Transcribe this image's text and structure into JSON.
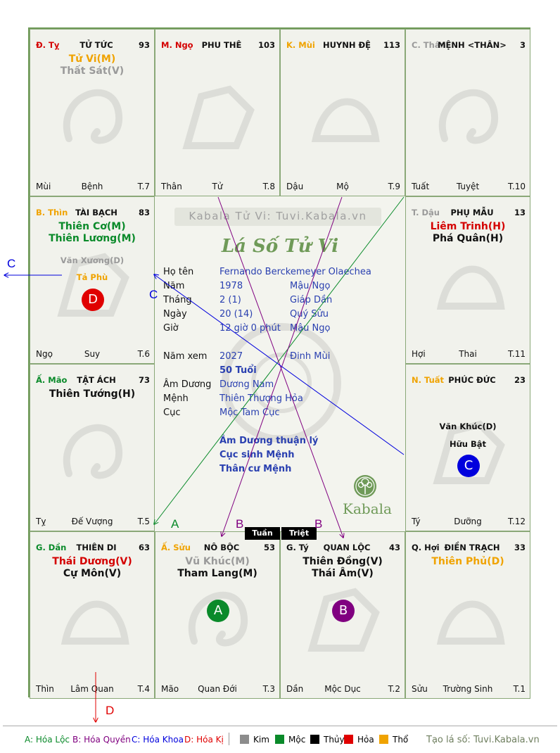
{
  "cells": {
    "ty": {
      "pos_name": "Đ. Tỵ",
      "pos_color": "#d40000",
      "title": "TỬ TỨC",
      "count": "93",
      "stars": [
        {
          "text": "Tử Vi(M)",
          "color": "#f0a300"
        },
        {
          "text": "Thất Sát(V)",
          "color": "#9a9a9a"
        }
      ],
      "bl": "Mùi",
      "bc": "Bệnh",
      "br": "T.7"
    },
    "ngo": {
      "pos_name": "M. Ngọ",
      "pos_color": "#d40000",
      "title": "PHU THÊ",
      "count": "103",
      "stars": [],
      "bl": "Thân",
      "bc": "Tử",
      "br": "T.8"
    },
    "mui": {
      "pos_name": "K. Mùi",
      "pos_color": "#f0a300",
      "title": "HUYNH ĐỆ",
      "count": "113",
      "stars": [],
      "bl": "Dậu",
      "bc": "Mộ",
      "br": "T.9"
    },
    "than": {
      "pos_name": "C. Thân",
      "pos_color": "#9a9a9a",
      "title": "MỆNH <THÂN>",
      "count": "3",
      "stars": [],
      "bl": "Tuất",
      "bc": "Tuyệt",
      "br": "T.10"
    },
    "thin": {
      "pos_name": "B. Thìn",
      "pos_color": "#f0a300",
      "title": "TÀI BẠCH",
      "count": "83",
      "stars": [
        {
          "text": "Thiên Cơ(M)",
          "color": "#0a8a2a"
        },
        {
          "text": "Thiên Lương(M)",
          "color": "#0a8a2a"
        }
      ],
      "minor": [
        {
          "text": "Văn Xương(D)",
          "color": "#9a9a9a"
        },
        {
          "text": "Tả Phù",
          "color": "#f0a300"
        }
      ],
      "circle": {
        "label": "D",
        "color": "#e00000"
      },
      "bl": "Ngọ",
      "bc": "Suy",
      "br": "T.6"
    },
    "dau": {
      "pos_name": "T. Dậu",
      "pos_color": "#9a9a9a",
      "title": "PHỤ MẪU",
      "count": "13",
      "stars": [
        {
          "text": "Liêm Trinh(H)",
          "color": "#d40000"
        },
        {
          "text": "Phá Quân(H)",
          "color": "#111111"
        }
      ],
      "bl": "Hợi",
      "bc": "Thai",
      "br": "T.11"
    },
    "mao": {
      "pos_name": "Ấ. Mão",
      "pos_color": "#0a8a2a",
      "title": "TẬT ÁCH",
      "count": "73",
      "stars": [
        {
          "text": "Thiên Tướng(H)",
          "color": "#111111"
        }
      ],
      "bl": "Tỵ",
      "bc": "Đế Vượng",
      "br": "T.5"
    },
    "tuat": {
      "pos_name": "N. Tuất",
      "pos_color": "#f0a300",
      "title": "PHÚC ĐỨC",
      "count": "23",
      "stars": [],
      "minor": [
        {
          "text": "Văn Khúc(D)",
          "color": "#111111"
        },
        {
          "text": "Hữu Bật",
          "color": "#111111"
        }
      ],
      "circle": {
        "label": "C",
        "color": "#0000dd"
      },
      "bl": "Tý",
      "bc": "Dưỡng",
      "br": "T.12"
    },
    "dan": {
      "pos_name": "G. Dần",
      "pos_color": "#0a8a2a",
      "title": "THIÊN DI",
      "count": "63",
      "stars": [
        {
          "text": "Thái Dương(V)",
          "color": "#d40000"
        },
        {
          "text": "Cự Môn(V)",
          "color": "#111111"
        }
      ],
      "bl": "Thìn",
      "bc": "Lâm Quan",
      "br": "T.4"
    },
    "suu": {
      "pos_name": "Ấ. Sửu",
      "pos_color": "#f0a300",
      "title": "NÔ BỘC",
      "count": "53",
      "stars": [
        {
          "text": "Vũ Khúc(M)",
          "color": "#9a9a9a"
        },
        {
          "text": "Tham Lang(M)",
          "color": "#111111"
        }
      ],
      "circle": {
        "label": "A",
        "color": "#0a8a2a"
      },
      "bl": "Mão",
      "bc": "Quan Đới",
      "br": "T.3"
    },
    "tycell": {
      "pos_name": "G. Tý",
      "pos_color": "#111111",
      "title": "QUAN LỘC",
      "count": "43",
      "stars": [
        {
          "text": "Thiên Đồng(V)",
          "color": "#111111"
        },
        {
          "text": "Thái Âm(V)",
          "color": "#111111"
        }
      ],
      "circle": {
        "label": "B",
        "color": "#800080"
      },
      "bl": "Dần",
      "bc": "Mộc Dục",
      "br": "T.2"
    },
    "hoi": {
      "pos_name": "Q. Hợi",
      "pos_color": "#111111",
      "title": "ĐIỀN TRẠCH",
      "count": "33",
      "stars": [
        {
          "text": "Thiên Phủ(D)",
          "color": "#f0a300"
        }
      ],
      "bl": "Sửu",
      "bc": "Trường Sinh",
      "br": "T.1"
    }
  },
  "center": {
    "banner": "Kabala Tử Vi: Tuvi.Kabala.vn",
    "script_title": "Lá Số Tử Vi",
    "rows": [
      {
        "k": "Họ tên",
        "v1": "Fernando Berckemeyer Olaechea",
        "v2": ""
      },
      {
        "k": "Năm",
        "v1": "1978",
        "v2": "Mậu Ngọ"
      },
      {
        "k": "Tháng",
        "v1": "2  (1)",
        "v2": "Giáp Dần"
      },
      {
        "k": "Ngày",
        "v1": "20  (14)",
        "v2": "Quý Sửu"
      },
      {
        "k": "Giờ",
        "v1": "12 giờ 0 phút",
        "v2": "Mậu Ngọ"
      }
    ],
    "view_year": {
      "k": "Năm xem",
      "v1": "2027",
      "v2": "Đinh Mùi"
    },
    "age": "50 Tuổi",
    "rows2": [
      {
        "k": "Âm Dương",
        "v": "Dương Nam"
      },
      {
        "k": "Mệnh",
        "v": "Thiên Thượng Hỏa"
      },
      {
        "k": "Cục",
        "v": "Mộc Tam Cục"
      }
    ],
    "notes": [
      "Âm Dương thuận lý",
      "Cục sinh Mệnh",
      "Thân cư Mệnh"
    ],
    "logo": "Kabala"
  },
  "tags": {
    "tuan": "Tuần",
    "triet": "Triệt"
  },
  "arrows": {
    "A": {
      "label": "A",
      "color": "#0a8a2a"
    },
    "B": {
      "label": "B",
      "color": "#800080"
    },
    "C": {
      "label": "C",
      "color": "#0000dd"
    },
    "D": {
      "label": "D",
      "color": "#e00000"
    }
  },
  "legend": {
    "a": "A: Hóa Lộc",
    "b": "B: Hóa Quyền",
    "c": "C: Hóa Khoa",
    "d": "D: Hóa Kị",
    "elements": [
      {
        "name": "Kim",
        "color": "#8c8c8c"
      },
      {
        "name": "Mộc",
        "color": "#0a8a2a"
      },
      {
        "name": "Thủy",
        "color": "#000000"
      },
      {
        "name": "Hỏa",
        "color": "#e00000"
      },
      {
        "name": "Thổ",
        "color": "#f0a300"
      }
    ],
    "credit": "Tạo lá số: Tuvi.Kabala.vn"
  }
}
